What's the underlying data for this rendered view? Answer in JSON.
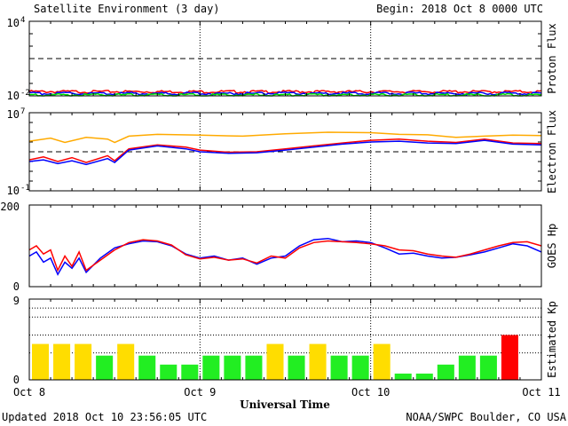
{
  "header": {
    "title": "Satellite Environment (3 day)",
    "begin": "Begin:  2018 Oct 8 0000 UTC"
  },
  "footer": {
    "updated": "Updated 2018 Oct 10 23:56:05 UTC",
    "credit": "NOAA/SWPC Boulder, CO USA"
  },
  "colors": {
    "red": "#ff0000",
    "blue": "#0000ff",
    "green": "#00dd00",
    "orange": "#ffaa00",
    "kp_green": "#22ee22",
    "kp_yellow": "#ffdd00",
    "kp_red": "#ff0000",
    "frame": "#000000"
  },
  "chart_data": [
    {
      "type": "line",
      "ylabel": "Proton Flux",
      "yscale": "log",
      "ylim": [
        0.01,
        10000
      ],
      "yticks": [
        {
          "base": "10",
          "exp": "4"
        },
        {
          "base": "10",
          "exp": "-2"
        }
      ],
      "threshold": 10,
      "x_range_hours": [
        0,
        72
      ],
      "series": [
        {
          "color": "red",
          "level": 0.022
        },
        {
          "color": "blue",
          "level": 0.016
        },
        {
          "color": "green",
          "level": 0.012
        }
      ]
    },
    {
      "type": "line",
      "ylabel": "Electron Flux",
      "yscale": "log",
      "ylim": [
        0.1,
        10000000
      ],
      "yticks": [
        {
          "base": "10",
          "exp": "7"
        },
        {
          "base": "10",
          "exp": "-1"
        }
      ],
      "threshold": 1000,
      "x_range_hours": [
        0,
        72
      ],
      "series": [
        {
          "color": "orange",
          "x": [
            0,
            3,
            5,
            8,
            11,
            12,
            14,
            18,
            24,
            30,
            36,
            42,
            48,
            52,
            56,
            60,
            64,
            68,
            72
          ],
          "y": [
            12000,
            25000,
            9000,
            30000,
            20000,
            9000,
            40000,
            60000,
            50000,
            40000,
            70000,
            100000,
            90000,
            60000,
            55000,
            30000,
            40000,
            50000,
            45000
          ]
        },
        {
          "color": "red",
          "x": [
            0,
            2,
            4,
            6,
            8,
            11,
            12,
            14,
            18,
            22,
            24,
            28,
            32,
            36,
            40,
            44,
            48,
            52,
            56,
            60,
            64,
            68,
            72
          ],
          "y": [
            150,
            300,
            100,
            250,
            80,
            400,
            120,
            2000,
            5000,
            3000,
            1500,
            900,
            1000,
            2000,
            4000,
            8000,
            15000,
            20000,
            12000,
            9000,
            20000,
            8000,
            7000
          ]
        },
        {
          "color": "blue",
          "x": [
            0,
            2,
            4,
            6,
            8,
            11,
            12,
            14,
            18,
            22,
            24,
            28,
            32,
            36,
            40,
            44,
            48,
            52,
            56,
            60,
            64,
            68,
            72
          ],
          "y": [
            100,
            150,
            60,
            120,
            50,
            200,
            80,
            1500,
            4000,
            2000,
            1000,
            700,
            800,
            1500,
            3000,
            6000,
            10000,
            12000,
            8000,
            7000,
            15000,
            6000,
            5000
          ]
        }
      ]
    },
    {
      "type": "line",
      "ylabel": "GOES Hp",
      "ylim": [
        0,
        200
      ],
      "yticks": [
        "200",
        "0"
      ],
      "x_range_hours": [
        0,
        72
      ],
      "series": [
        {
          "color": "blue",
          "x": [
            0,
            1,
            2,
            3,
            4,
            5,
            6,
            7,
            8,
            10,
            12,
            14,
            16,
            18,
            20,
            22,
            24,
            26,
            28,
            30,
            32,
            34,
            36,
            38,
            40,
            42,
            44,
            46,
            48,
            50,
            52,
            54,
            56,
            58,
            60,
            62,
            64,
            66,
            68,
            70,
            72
          ],
          "y": [
            75,
            85,
            60,
            70,
            30,
            60,
            45,
            70,
            35,
            70,
            95,
            105,
            112,
            110,
            100,
            80,
            70,
            75,
            65,
            70,
            55,
            70,
            75,
            100,
            115,
            118,
            110,
            112,
            108,
            95,
            80,
            82,
            75,
            70,
            72,
            78,
            85,
            95,
            105,
            100,
            85
          ]
        },
        {
          "color": "red",
          "x": [
            0,
            1,
            2,
            3,
            4,
            5,
            6,
            7,
            8,
            10,
            12,
            14,
            16,
            18,
            20,
            22,
            24,
            26,
            28,
            30,
            32,
            34,
            36,
            38,
            40,
            42,
            44,
            46,
            48,
            50,
            52,
            54,
            56,
            58,
            60,
            62,
            64,
            66,
            68,
            70,
            72
          ],
          "y": [
            90,
            100,
            80,
            90,
            40,
            75,
            50,
            85,
            40,
            65,
            90,
            108,
            115,
            112,
            102,
            78,
            68,
            72,
            65,
            68,
            58,
            75,
            70,
            95,
            108,
            112,
            110,
            108,
            105,
            100,
            90,
            88,
            80,
            75,
            72,
            80,
            90,
            100,
            108,
            110,
            100
          ]
        }
      ]
    },
    {
      "type": "bar",
      "ylabel": "Estimated Kp",
      "ylim": [
        0,
        9
      ],
      "yticks": [
        "9",
        "0"
      ],
      "bin_hours": 3,
      "values": [
        4,
        4,
        4,
        2.7,
        4,
        2.7,
        1.7,
        1.7,
        2.7,
        2.7,
        2.7,
        4,
        2.7,
        4,
        2.7,
        2.7,
        4,
        0.7,
        0.7,
        1.7,
        2.7,
        2.7,
        5
      ],
      "bar_colors": [
        "kp_yellow",
        "kp_yellow",
        "kp_yellow",
        "kp_green",
        "kp_yellow",
        "kp_green",
        "kp_green",
        "kp_green",
        "kp_green",
        "kp_green",
        "kp_green",
        "kp_yellow",
        "kp_green",
        "kp_yellow",
        "kp_green",
        "kp_green",
        "kp_yellow",
        "kp_green",
        "kp_green",
        "kp_green",
        "kp_green",
        "kp_green",
        "kp_red"
      ],
      "dotted_levels": [
        3,
        5,
        7,
        8,
        9
      ]
    }
  ],
  "x_axis": {
    "label": "Universal Time",
    "ticks": [
      "Oct 8",
      "Oct 9",
      "Oct 10",
      "Oct 11"
    ],
    "day_hours": [
      0,
      24,
      48,
      72
    ]
  }
}
